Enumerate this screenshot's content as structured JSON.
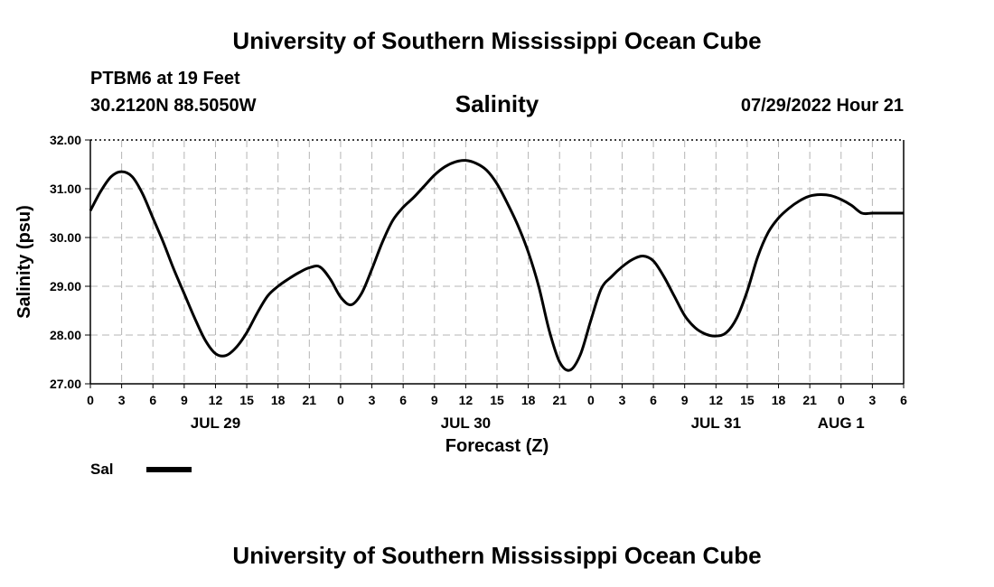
{
  "header": {
    "org_title": "University of Southern Mississippi Ocean Cube",
    "station": "PTBM6 at 19 Feet",
    "coords": "30.2120N  88.5050W",
    "datetime": "07/29/2022 Hour 21",
    "footer_title": "University of Southern Mississippi Ocean Cube"
  },
  "chart_data": {
    "type": "line",
    "title": "Salinity",
    "xlabel": "Forecast (Z)",
    "ylabel": "Salinity (psu)",
    "ylim": [
      27.0,
      32.0
    ],
    "yticks": [
      27.0,
      28.0,
      29.0,
      30.0,
      31.0,
      32.0
    ],
    "ytick_labels": [
      "27.00",
      "28.00",
      "29.00",
      "30.00",
      "31.00",
      "32.00"
    ],
    "xlim_hours": [
      0,
      78
    ],
    "xtick_step_hours": 3,
    "xtick_labels": [
      "0",
      "3",
      "6",
      "9",
      "12",
      "15",
      "18",
      "21",
      "0",
      "3",
      "6",
      "9",
      "12",
      "15",
      "18",
      "21",
      "0",
      "3",
      "6",
      "9",
      "12",
      "15",
      "18",
      "21",
      "0",
      "3",
      "6"
    ],
    "day_labels": [
      {
        "label": "JUL 29",
        "hour": 12
      },
      {
        "label": "JUL 30",
        "hour": 36
      },
      {
        "label": "JUL 31",
        "hour": 60
      },
      {
        "label": "AUG 1",
        "hour": 72
      }
    ],
    "grid": true,
    "series": [
      {
        "name": "Sal",
        "x": [
          0,
          1,
          2,
          3,
          4,
          5,
          6,
          7,
          8,
          9,
          10,
          11,
          12,
          13,
          14,
          15,
          16,
          17,
          18,
          19,
          20,
          21,
          22,
          23,
          24,
          25,
          26,
          27,
          28,
          29,
          30,
          31,
          32,
          33,
          34,
          35,
          36,
          37,
          38,
          39,
          40,
          41,
          42,
          43,
          44,
          45,
          46,
          47,
          48,
          49,
          50,
          51,
          52,
          53,
          54,
          55,
          56,
          57,
          58,
          59,
          60,
          61,
          62,
          63,
          64,
          65,
          66,
          67,
          68,
          69,
          70,
          71,
          72,
          73,
          74,
          75,
          76,
          77,
          78
        ],
        "values": [
          30.55,
          30.95,
          31.25,
          31.35,
          31.25,
          30.9,
          30.4,
          29.9,
          29.35,
          28.85,
          28.35,
          27.9,
          27.62,
          27.58,
          27.75,
          28.05,
          28.45,
          28.8,
          29.0,
          29.15,
          29.28,
          29.38,
          29.4,
          29.15,
          28.78,
          28.62,
          28.85,
          29.35,
          29.9,
          30.35,
          30.62,
          30.82,
          31.05,
          31.28,
          31.45,
          31.55,
          31.58,
          31.52,
          31.38,
          31.1,
          30.7,
          30.25,
          29.7,
          29.0,
          28.1,
          27.45,
          27.28,
          27.6,
          28.3,
          28.95,
          29.2,
          29.4,
          29.55,
          29.62,
          29.52,
          29.2,
          28.8,
          28.4,
          28.15,
          28.02,
          27.98,
          28.05,
          28.35,
          28.9,
          29.6,
          30.1,
          30.4,
          30.6,
          30.75,
          30.85,
          30.88,
          30.86,
          30.78,
          30.66,
          30.5,
          30.5,
          30.5,
          30.5,
          30.5
        ]
      }
    ],
    "legend": {
      "entries": [
        "Sal"
      ],
      "position": "bottom-left"
    }
  }
}
